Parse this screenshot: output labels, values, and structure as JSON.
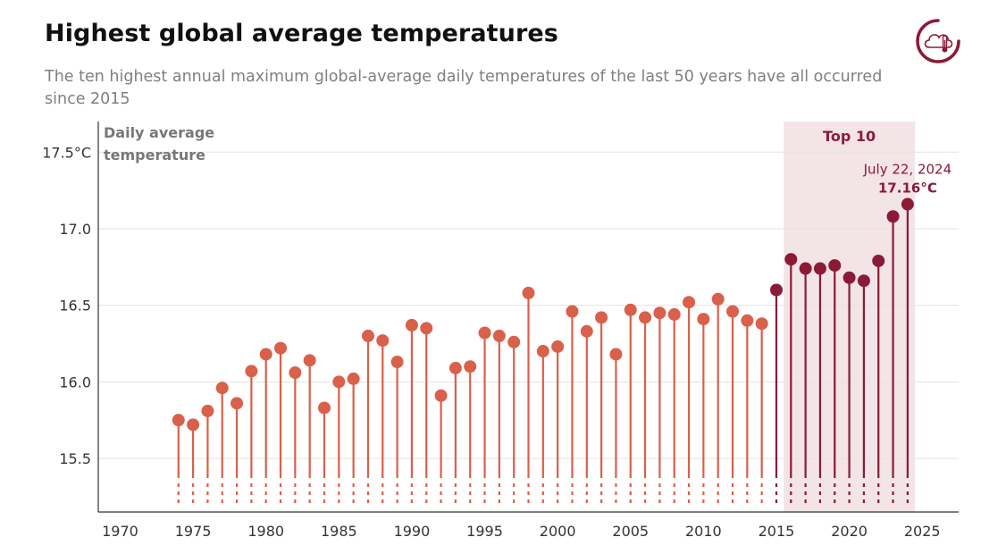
{
  "header": {
    "title": "Highest global average temperatures",
    "subtitle": "The ten highest annual maximum global-average daily temperatures of the last 50 years have all occurred since 2015"
  },
  "colors": {
    "older": "#d9604a",
    "top10": "#8b1a36",
    "highlight_band": "#f3e4e8",
    "grid": "#e3e3e3",
    "axis_label": "#777777",
    "logo": "#8b1a36"
  },
  "logo": {
    "icon": "cloud-thermometer-icon"
  },
  "chart_data": {
    "type": "lollipop",
    "ylabel": "Daily average temperature",
    "ylabel_lines": [
      "Daily average",
      "temperature"
    ],
    "y_ticks": [
      "15.5",
      "16.0",
      "16.5",
      "17.0",
      "17.5°C"
    ],
    "y_tick_values": [
      15.5,
      16.0,
      16.5,
      17.0,
      17.5
    ],
    "x_ticks": [
      "1970",
      "1975",
      "1980",
      "1985",
      "1990",
      "1995",
      "2000",
      "2005",
      "2010",
      "2015",
      "2020",
      "2025"
    ],
    "x_tick_values": [
      1970,
      1975,
      1980,
      1985,
      1990,
      1995,
      2000,
      2005,
      2010,
      2015,
      2020,
      2025
    ],
    "xlim": [
      1968.5,
      2027.5
    ],
    "ylim": [
      15.15,
      17.7
    ],
    "axis_break": true,
    "grid": true,
    "highlight": {
      "label": "Top 10",
      "x_range": [
        2015.5,
        2024.5
      ]
    },
    "annotation": {
      "date": "July 22, 2024",
      "value_label": "17.16°C",
      "x": 2024,
      "y": 17.16
    },
    "series": [
      {
        "name": "Top 10",
        "highlight": true,
        "x": [
          2015,
          2016,
          2017,
          2018,
          2019,
          2020,
          2021,
          2022,
          2023,
          2024
        ]
      }
    ],
    "x": [
      1974,
      1975,
      1976,
      1977,
      1978,
      1979,
      1980,
      1981,
      1982,
      1983,
      1984,
      1985,
      1986,
      1987,
      1988,
      1989,
      1990,
      1991,
      1992,
      1993,
      1994,
      1995,
      1996,
      1997,
      1998,
      1999,
      2000,
      2001,
      2002,
      2003,
      2004,
      2005,
      2006,
      2007,
      2008,
      2009,
      2010,
      2011,
      2012,
      2013,
      2014,
      2015,
      2016,
      2017,
      2018,
      2019,
      2020,
      2021,
      2022,
      2023,
      2024
    ],
    "values": [
      15.75,
      15.72,
      15.81,
      15.96,
      15.86,
      16.07,
      16.18,
      16.22,
      16.06,
      16.14,
      15.83,
      16.0,
      16.02,
      16.3,
      16.27,
      16.13,
      16.37,
      16.35,
      15.91,
      16.09,
      16.1,
      16.32,
      16.3,
      16.26,
      16.58,
      16.2,
      16.23,
      16.46,
      16.33,
      16.42,
      16.18,
      16.47,
      16.42,
      16.45,
      16.44,
      16.52,
      16.41,
      16.54,
      16.46,
      16.4,
      16.38,
      16.6,
      16.8,
      16.74,
      16.74,
      16.76,
      16.68,
      16.66,
      16.79,
      17.08,
      17.16
    ]
  }
}
